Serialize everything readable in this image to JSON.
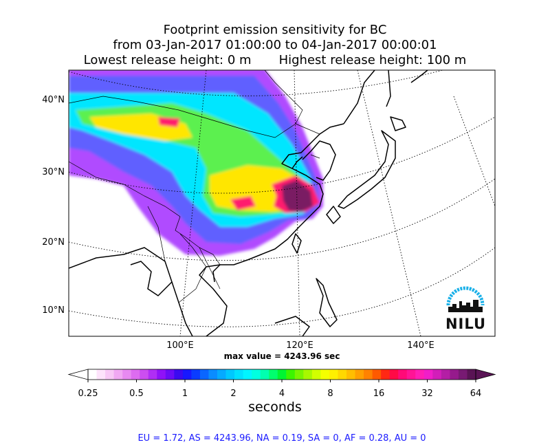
{
  "title": {
    "line1": "Footprint emission sensitivity for BC",
    "line2": "from 03-Jan-2017 01:00:00 to 04-Jan-2017 00:00:01",
    "line3": "Lowest release height: 0 m       Highest release height: 100 m"
  },
  "map": {
    "lat_labels": [
      "40°N",
      "30°N",
      "20°N",
      "10°N"
    ],
    "lon_labels": [
      "100°E",
      "120°E",
      "140°E"
    ],
    "max_value_text": "max value = 4243.96 sec",
    "logo_text": "NILU",
    "colors": {
      "coast": "#000000",
      "grid": "#000000",
      "plume_outer": "#b04cff",
      "plume_mid": "#00e6ff",
      "plume_inner": "#ffe600",
      "plume_hot": "#ff1c6e",
      "plume_max": "#7a1a63",
      "logo_arc": "#1ab0e8"
    }
  },
  "colorbar": {
    "tick_labels": [
      "0.25",
      "0.5",
      "1",
      "2",
      "4",
      "8",
      "16",
      "32",
      "64"
    ],
    "label": "seconds",
    "colors": [
      "#ffffff",
      "#fde3fb",
      "#f8c8f6",
      "#f1a8f3",
      "#e88af1",
      "#dd6cf0",
      "#cc4ef0",
      "#b02ef5",
      "#8f12f8",
      "#6a0cf6",
      "#3b0af0",
      "#1818ff",
      "#0a3cff",
      "#0a66ff",
      "#0a8cff",
      "#05aaff",
      "#00c8ff",
      "#00e1ff",
      "#00f5ff",
      "#00ffe0",
      "#00ffb0",
      "#00ff6e",
      "#00f532",
      "#3cf500",
      "#78f500",
      "#a8f800",
      "#d2ff00",
      "#f5ff00",
      "#fff000",
      "#ffd800",
      "#ffbe00",
      "#ffa000",
      "#ff8200",
      "#ff5a00",
      "#ff2814",
      "#ff0a46",
      "#ff0a78",
      "#ff1496",
      "#ff1eb4",
      "#f01ec8",
      "#d21eb9",
      "#b41ea5",
      "#961a8c",
      "#781a73",
      "#5a1455"
    ]
  },
  "footer": "EU = 1.72,  AS = 4243.96,  NA = 0.19,  SA = 0,  AF = 0.28,  AU = 0"
}
